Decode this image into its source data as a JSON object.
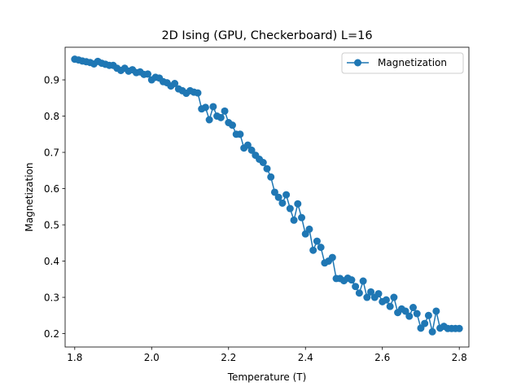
{
  "chart_data": {
    "type": "line",
    "title": "2D Ising (GPU, Checkerboard) L=16",
    "xlabel": "Temperature (T)",
    "ylabel": "Magnetization",
    "xlim": [
      1.775,
      2.825
    ],
    "ylim": [
      0.163,
      0.99
    ],
    "xticks": [
      1.8,
      2.0,
      2.2,
      2.4,
      2.6,
      2.8
    ],
    "xtick_labels": [
      "1.8",
      "2.0",
      "2.2",
      "2.4",
      "2.6",
      "2.8"
    ],
    "yticks": [
      0.2,
      0.3,
      0.4,
      0.5,
      0.6,
      0.7,
      0.8,
      0.9
    ],
    "ytick_labels": [
      "0.2",
      "0.3",
      "0.4",
      "0.5",
      "0.6",
      "0.7",
      "0.8",
      "0.9"
    ],
    "grid": false,
    "legend_position": "top-right",
    "series": [
      {
        "name": "Magnetization",
        "color": "#1f77b4",
        "marker": "circle",
        "x": [
          1.8,
          1.81,
          1.82,
          1.83,
          1.84,
          1.85,
          1.86,
          1.87,
          1.88,
          1.89,
          1.9,
          1.91,
          1.92,
          1.93,
          1.94,
          1.95,
          1.96,
          1.97,
          1.98,
          1.99,
          2.0,
          2.01,
          2.02,
          2.03,
          2.04,
          2.05,
          2.06,
          2.07,
          2.08,
          2.09,
          2.1,
          2.11,
          2.12,
          2.13,
          2.14,
          2.15,
          2.16,
          2.17,
          2.18,
          2.19,
          2.2,
          2.21,
          2.22,
          2.23,
          2.24,
          2.25,
          2.26,
          2.27,
          2.28,
          2.29,
          2.3,
          2.31,
          2.32,
          2.33,
          2.34,
          2.35,
          2.36,
          2.37,
          2.38,
          2.39,
          2.4,
          2.41,
          2.42,
          2.43,
          2.44,
          2.45,
          2.46,
          2.47,
          2.48,
          2.49,
          2.5,
          2.51,
          2.52,
          2.53,
          2.54,
          2.55,
          2.56,
          2.57,
          2.58,
          2.59,
          2.6,
          2.61,
          2.62,
          2.63,
          2.64,
          2.65,
          2.66,
          2.67,
          2.68,
          2.69,
          2.7,
          2.71,
          2.72,
          2.73,
          2.74,
          2.75,
          2.76,
          2.77,
          2.78,
          2.79,
          2.8
        ],
        "y": [
          0.957,
          0.955,
          0.952,
          0.95,
          0.948,
          0.944,
          0.951,
          0.946,
          0.943,
          0.94,
          0.94,
          0.932,
          0.926,
          0.932,
          0.924,
          0.928,
          0.92,
          0.922,
          0.915,
          0.916,
          0.9,
          0.907,
          0.905,
          0.895,
          0.892,
          0.883,
          0.89,
          0.875,
          0.87,
          0.863,
          0.87,
          0.866,
          0.864,
          0.82,
          0.824,
          0.79,
          0.826,
          0.8,
          0.796,
          0.814,
          0.782,
          0.775,
          0.75,
          0.75,
          0.712,
          0.72,
          0.706,
          0.692,
          0.681,
          0.672,
          0.655,
          0.632,
          0.59,
          0.576,
          0.56,
          0.583,
          0.545,
          0.513,
          0.558,
          0.52,
          0.475,
          0.488,
          0.43,
          0.455,
          0.438,
          0.395,
          0.4,
          0.41,
          0.352,
          0.352,
          0.346,
          0.353,
          0.348,
          0.33,
          0.312,
          0.345,
          0.3,
          0.315,
          0.3,
          0.31,
          0.288,
          0.293,
          0.275,
          0.3,
          0.258,
          0.268,
          0.262,
          0.248,
          0.272,
          0.255,
          0.215,
          0.228,
          0.25,
          0.205,
          0.262,
          0.215,
          0.22,
          0.214,
          0.214,
          0.214,
          0.214
        ]
      }
    ]
  }
}
